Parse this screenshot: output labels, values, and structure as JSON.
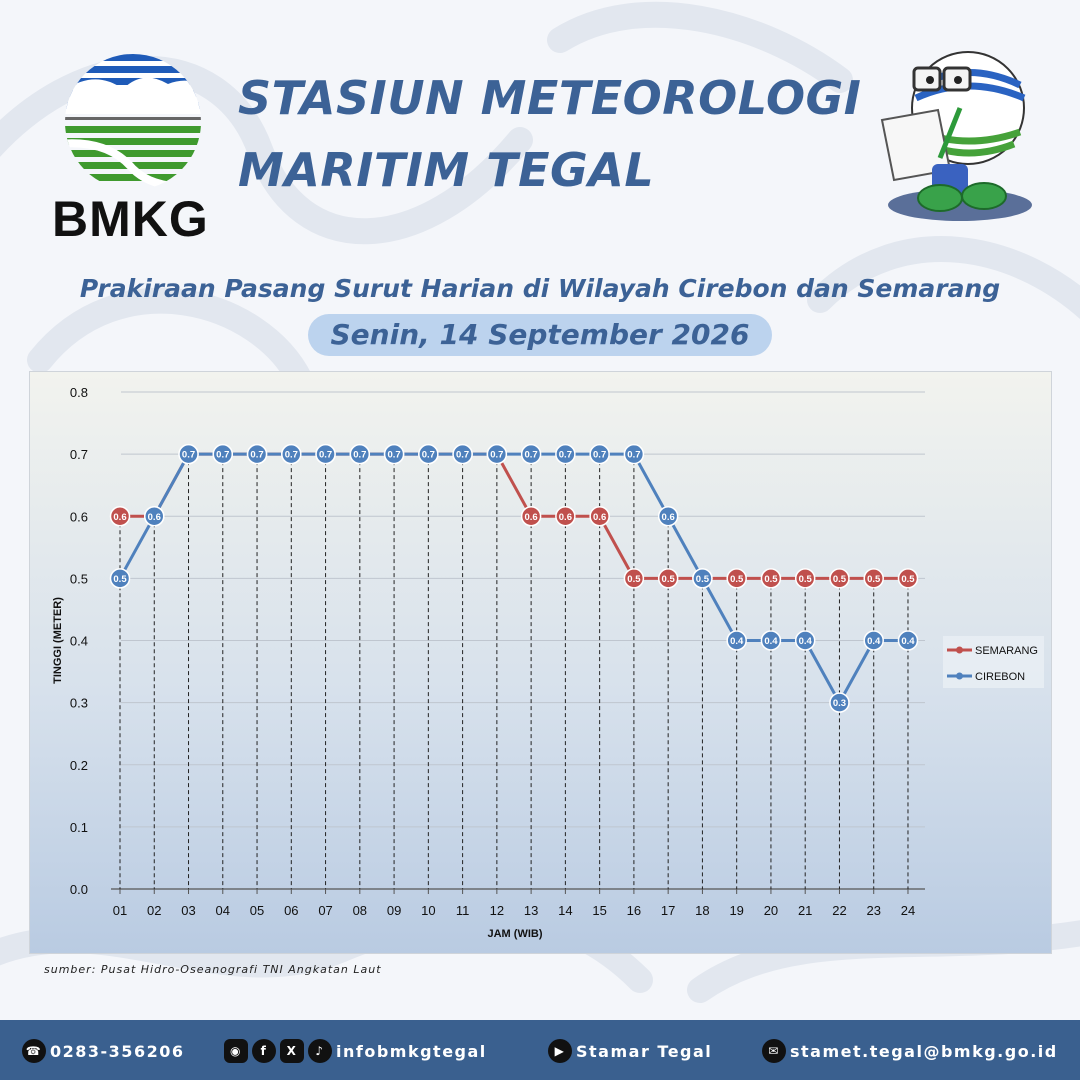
{
  "header": {
    "logo_text": "BMKG",
    "title_line1": "STASIUN METEOROLOGI",
    "title_line2": "MARITIM TEGAL",
    "subtitle": "Prakiraan Pasang Surut Harian di Wilayah Cirebon dan Semarang",
    "date": "Senin, 14 September 2026"
  },
  "colors": {
    "title": "#3c6296",
    "semarang": "#c0504d",
    "cirebon": "#4f81bd",
    "footer": "#3a608f"
  },
  "chart_data": {
    "type": "line",
    "title": "",
    "xlabel": "JAM (WIB)",
    "ylabel": "TINGGI (METER)",
    "ylim": [
      0,
      0.8
    ],
    "yticks": [
      "0.0",
      "0.1",
      "0.2",
      "0.3",
      "0.4",
      "0.5",
      "0.6",
      "0.7",
      "0.8"
    ],
    "categories": [
      "01",
      "02",
      "03",
      "04",
      "05",
      "06",
      "07",
      "08",
      "09",
      "10",
      "11",
      "12",
      "13",
      "14",
      "15",
      "16",
      "17",
      "18",
      "19",
      "20",
      "21",
      "22",
      "23",
      "24"
    ],
    "series": [
      {
        "name": "SEMARANG",
        "color": "#c0504d",
        "values": [
          0.6,
          0.6,
          0.7,
          0.7,
          0.7,
          0.7,
          0.7,
          0.7,
          0.7,
          0.7,
          0.7,
          0.7,
          0.6,
          0.6,
          0.6,
          0.5,
          0.5,
          0.5,
          0.5,
          0.5,
          0.5,
          0.5,
          0.5,
          0.5
        ]
      },
      {
        "name": "CIREBON",
        "color": "#4f81bd",
        "values": [
          0.5,
          0.6,
          0.7,
          0.7,
          0.7,
          0.7,
          0.7,
          0.7,
          0.7,
          0.7,
          0.7,
          0.7,
          0.7,
          0.7,
          0.7,
          0.7,
          0.6,
          0.5,
          0.4,
          0.4,
          0.4,
          0.3,
          0.4,
          0.4
        ]
      }
    ],
    "grid": true,
    "legend": "right",
    "drop_lines": true,
    "data_labels": true
  },
  "source": "sumber: Pusat Hidro-Oseanografi TNI Angkatan Laut",
  "footer": {
    "phone": "0283-356206",
    "social": "infobmkgtegal",
    "youtube": "Stamar Tegal",
    "email": "stamet.tegal@bmkg.go.id"
  }
}
